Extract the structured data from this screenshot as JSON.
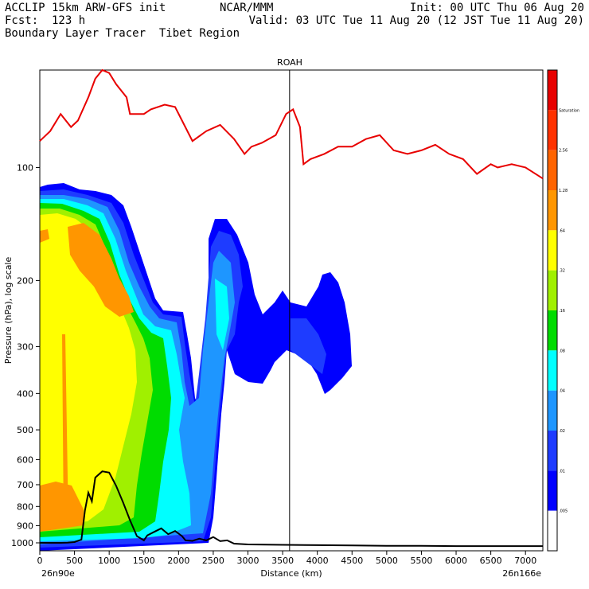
{
  "header": {
    "left_line1": "ACCLIP 15km ARW-GFS init",
    "left_line2": "Fcst:  123 h",
    "left_line3": "Boundary Layer Tracer  Tibet Region",
    "center": "NCAR/MMM",
    "right_line1": "Init: 00 UTC Thu 06 Aug 20",
    "right_line2": "Valid: 03 UTC Tue 11 Aug 20 (12 JST Tue 11 Aug 20)"
  },
  "chart_data": {
    "type": "heatmap",
    "title": "ROAH",
    "xlabel": "Distance (km)",
    "ylabel": "Pressure (hPa), log scale",
    "xlim": [
      0,
      7250
    ],
    "ylim": [
      1050,
      55
    ],
    "x_ticks": [
      "0",
      "500",
      "1000",
      "1500",
      "2000",
      "2500",
      "3000",
      "3500",
      "4000",
      "4500",
      "5000",
      "5500",
      "6000",
      "6500",
      "7000"
    ],
    "y_ticks": [
      "100",
      "200",
      "300",
      "400",
      "500",
      "600",
      "700",
      "800",
      "900",
      "1000"
    ],
    "x_start_label": "26n90e",
    "x_end_label": "26n166e",
    "vertical_marker_km": 3600,
    "colorbar": {
      "labels": [
        ".005",
        ".01",
        ".02",
        ".04",
        ".08",
        ".16",
        ".32",
        ".64",
        "1.28",
        "2.56",
        "Saturation"
      ],
      "colors": [
        "#ffffff",
        "#0000ff",
        "#1e3cff",
        "#1e96ff",
        "#00ffff",
        "#00dc00",
        "#a0f000",
        "#ffff00",
        "#ff9600",
        "#ff6400",
        "#ff3200",
        "#e80000"
      ]
    },
    "tropopause_series": {
      "name": "",
      "x": [
        0,
        150,
        300,
        450,
        550,
        700,
        800,
        900,
        1000,
        1100,
        1250,
        1300,
        1500,
        1600,
        1800,
        1950,
        2050,
        2200,
        2400,
        2600,
        2800,
        2950,
        3050,
        3200,
        3400,
        3550,
        3650,
        3750,
        3800,
        3900,
        4100,
        4300,
        4500,
        4700,
        4900,
        5100,
        5300,
        5500,
        5700,
        5900,
        6100,
        6300,
        6500,
        6600,
        6800,
        7000,
        7250
      ],
      "y": [
        85,
        80,
        72,
        78,
        75,
        65,
        58,
        55,
        56,
        60,
        65,
        72,
        72,
        70,
        68,
        69,
        75,
        85,
        80,
        77,
        84,
        92,
        88,
        86,
        82,
        72,
        70,
        78,
        98,
        95,
        92,
        88,
        88,
        84,
        82,
        90,
        92,
        90,
        87,
        92,
        95,
        104,
        98,
        100,
        98,
        100,
        107
      ]
    },
    "terrain_series": {
      "name": "",
      "x": [
        0,
        100,
        200,
        300,
        400,
        500,
        600,
        650,
        700,
        750,
        800,
        900,
        1000,
        1100,
        1200,
        1300,
        1400,
        1500,
        1550,
        1650,
        1750,
        1850,
        1950,
        2050,
        2100,
        2200,
        2300,
        2400,
        2500,
        2600,
        2700,
        2800,
        3000,
        3500,
        4000,
        4500,
        5000,
        5500,
        6000,
        6500,
        7000,
        7250
      ],
      "y": [
        1000,
        1000,
        1000,
        1000,
        999,
        995,
        980,
        820,
        735,
        775,
        670,
        645,
        650,
        705,
        780,
        870,
        960,
        985,
        955,
        935,
        915,
        948,
        930,
        960,
        985,
        988,
        975,
        985,
        965,
        990,
        985,
        1005,
        1010,
        1012,
        1014,
        1016,
        1018,
        1018,
        1020,
        1020,
        1020,
        1020
      ]
    }
  }
}
